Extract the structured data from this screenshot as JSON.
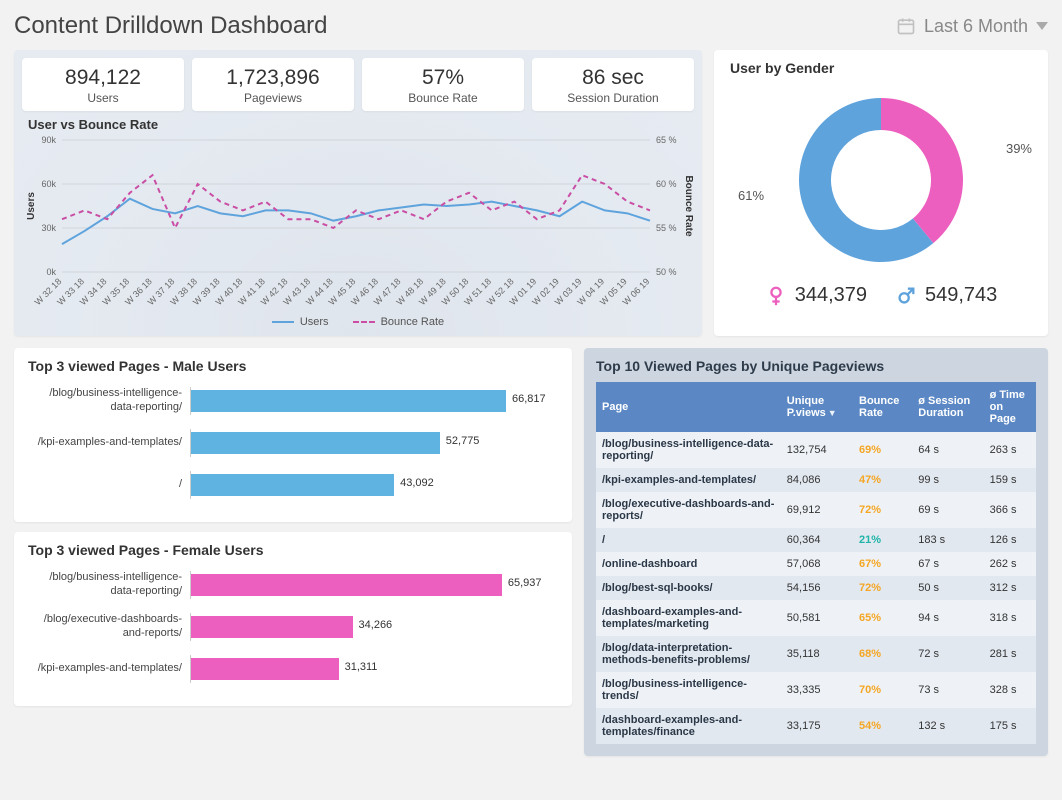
{
  "header": {
    "title": "Content Drilldown Dashboard",
    "date_range": "Last 6 Month"
  },
  "kpis": [
    {
      "value": "894,122",
      "label": "Users"
    },
    {
      "value": "1,723,896",
      "label": "Pageviews"
    },
    {
      "value": "57%",
      "label": "Bounce Rate"
    },
    {
      "value": "86 sec",
      "label": "Session Duration"
    }
  ],
  "line_chart": {
    "title": "User vs Bounce Rate",
    "y1_label": "Users",
    "y2_label": "Bounce Rate",
    "y1_ticks": [
      "0k",
      "30k",
      "60k",
      "90k"
    ],
    "y1_values": [
      0,
      30,
      60,
      90
    ],
    "y2_ticks": [
      "50 %",
      "55 %",
      "60 %",
      "65 %"
    ],
    "y2_values": [
      50,
      55,
      60,
      65
    ],
    "x_labels": [
      "W 32 18",
      "W 33 18",
      "W 34 18",
      "W 35 18",
      "W 36 18",
      "W 37 18",
      "W 38 18",
      "W 39 18",
      "W 40 18",
      "W 41 18",
      "W 42 18",
      "W 43 18",
      "W 44 18",
      "W 45 18",
      "W 46 18",
      "W 47 18",
      "W 48 18",
      "W 49 18",
      "W 50 18",
      "W 51 18",
      "W 52 18",
      "W 01 19",
      "W 02 19",
      "W 03 19",
      "W 04 19",
      "W 05 19",
      "W 06 19"
    ],
    "users": [
      19,
      28,
      38,
      50,
      43,
      40,
      45,
      40,
      38,
      42,
      42,
      40,
      35,
      38,
      42,
      44,
      46,
      45,
      46,
      48,
      45,
      42,
      38,
      48,
      42,
      40,
      35
    ],
    "bounce": [
      56,
      57,
      56,
      59,
      61,
      55,
      60,
      58,
      57,
      58,
      56,
      56,
      55,
      57,
      56,
      57,
      56,
      58,
      59,
      57,
      58,
      56,
      57,
      61,
      60,
      58,
      57
    ],
    "users_color": "#5fa3dd",
    "bounce_color": "#c94ea4",
    "legend_users": "Users",
    "legend_bounce": "Bounce Rate",
    "grid_color": "#d0d5db",
    "line_width": 2
  },
  "gender": {
    "title": "User by Gender",
    "female_pct": 39,
    "male_pct": 61,
    "female_pct_label": "39%",
    "male_pct_label": "61%",
    "female_count": "344,379",
    "male_count": "549,743",
    "female_color": "#ed5fbf",
    "male_color": "#5fa3dd",
    "inner_radius": 50,
    "outer_radius": 82
  },
  "bars_male": {
    "title": "Top 3 viewed Pages - Male Users",
    "color": "#5fb3e0",
    "max": 70000,
    "items": [
      {
        "label": "/blog/business-intelligence-data-reporting/",
        "value": 66817,
        "display": "66,817"
      },
      {
        "label": "/kpi-examples-and-templates/",
        "value": 52775,
        "display": "52,775"
      },
      {
        "label": "/",
        "value": 43092,
        "display": "43,092"
      }
    ]
  },
  "bars_female": {
    "title": "Top 3 viewed Pages - Female Users",
    "color": "#ed5fbf",
    "max": 70000,
    "items": [
      {
        "label": "/blog/business-intelligence-data-reporting/",
        "value": 65937,
        "display": "65,937"
      },
      {
        "label": "/blog/executive-dashboards-and-reports/",
        "value": 34266,
        "display": "34,266"
      },
      {
        "label": "/kpi-examples-and-templates/",
        "value": 31311,
        "display": "31,311"
      }
    ]
  },
  "table": {
    "title": "Top 10 Viewed Pages by Unique Pageviews",
    "columns": [
      "Page",
      "Unique P.views",
      "Bounce Rate",
      "ø  Session Duration",
      "ø Time on Page"
    ],
    "header_bg": "#5b88c4",
    "bounce_high_color": "#f5a623",
    "bounce_low_color": "#1fb5a8",
    "bounce_threshold_low": 40,
    "rows": [
      {
        "page": "/blog/business-intelligence-data-reporting/",
        "uv": "132,754",
        "br": "69%",
        "br_val": 69,
        "sd": "64 s",
        "tp": "263 s"
      },
      {
        "page": "/kpi-examples-and-templates/",
        "uv": "84,086",
        "br": "47%",
        "br_val": 47,
        "sd": "99 s",
        "tp": "159 s"
      },
      {
        "page": "/blog/executive-dashboards-and-reports/",
        "uv": "69,912",
        "br": "72%",
        "br_val": 72,
        "sd": "69 s",
        "tp": "366 s"
      },
      {
        "page": "/",
        "uv": "60,364",
        "br": "21%",
        "br_val": 21,
        "sd": "183 s",
        "tp": "126 s"
      },
      {
        "page": "/online-dashboard",
        "uv": "57,068",
        "br": "67%",
        "br_val": 67,
        "sd": "67 s",
        "tp": "262 s"
      },
      {
        "page": "/blog/best-sql-books/",
        "uv": "54,156",
        "br": "72%",
        "br_val": 72,
        "sd": "50 s",
        "tp": "312 s"
      },
      {
        "page": "/dashboard-examples-and-templates/marketing",
        "uv": "50,581",
        "br": "65%",
        "br_val": 65,
        "sd": "94 s",
        "tp": "318 s"
      },
      {
        "page": "/blog/data-interpretation-methods-benefits-problems/",
        "uv": "35,118",
        "br": "68%",
        "br_val": 68,
        "sd": "72 s",
        "tp": "281 s"
      },
      {
        "page": "/blog/business-intelligence-trends/",
        "uv": "33,335",
        "br": "70%",
        "br_val": 70,
        "sd": "73 s",
        "tp": "328 s"
      },
      {
        "page": "/dashboard-examples-and-templates/finance",
        "uv": "33,175",
        "br": "54%",
        "br_val": 54,
        "sd": "132 s",
        "tp": "175 s"
      }
    ]
  }
}
